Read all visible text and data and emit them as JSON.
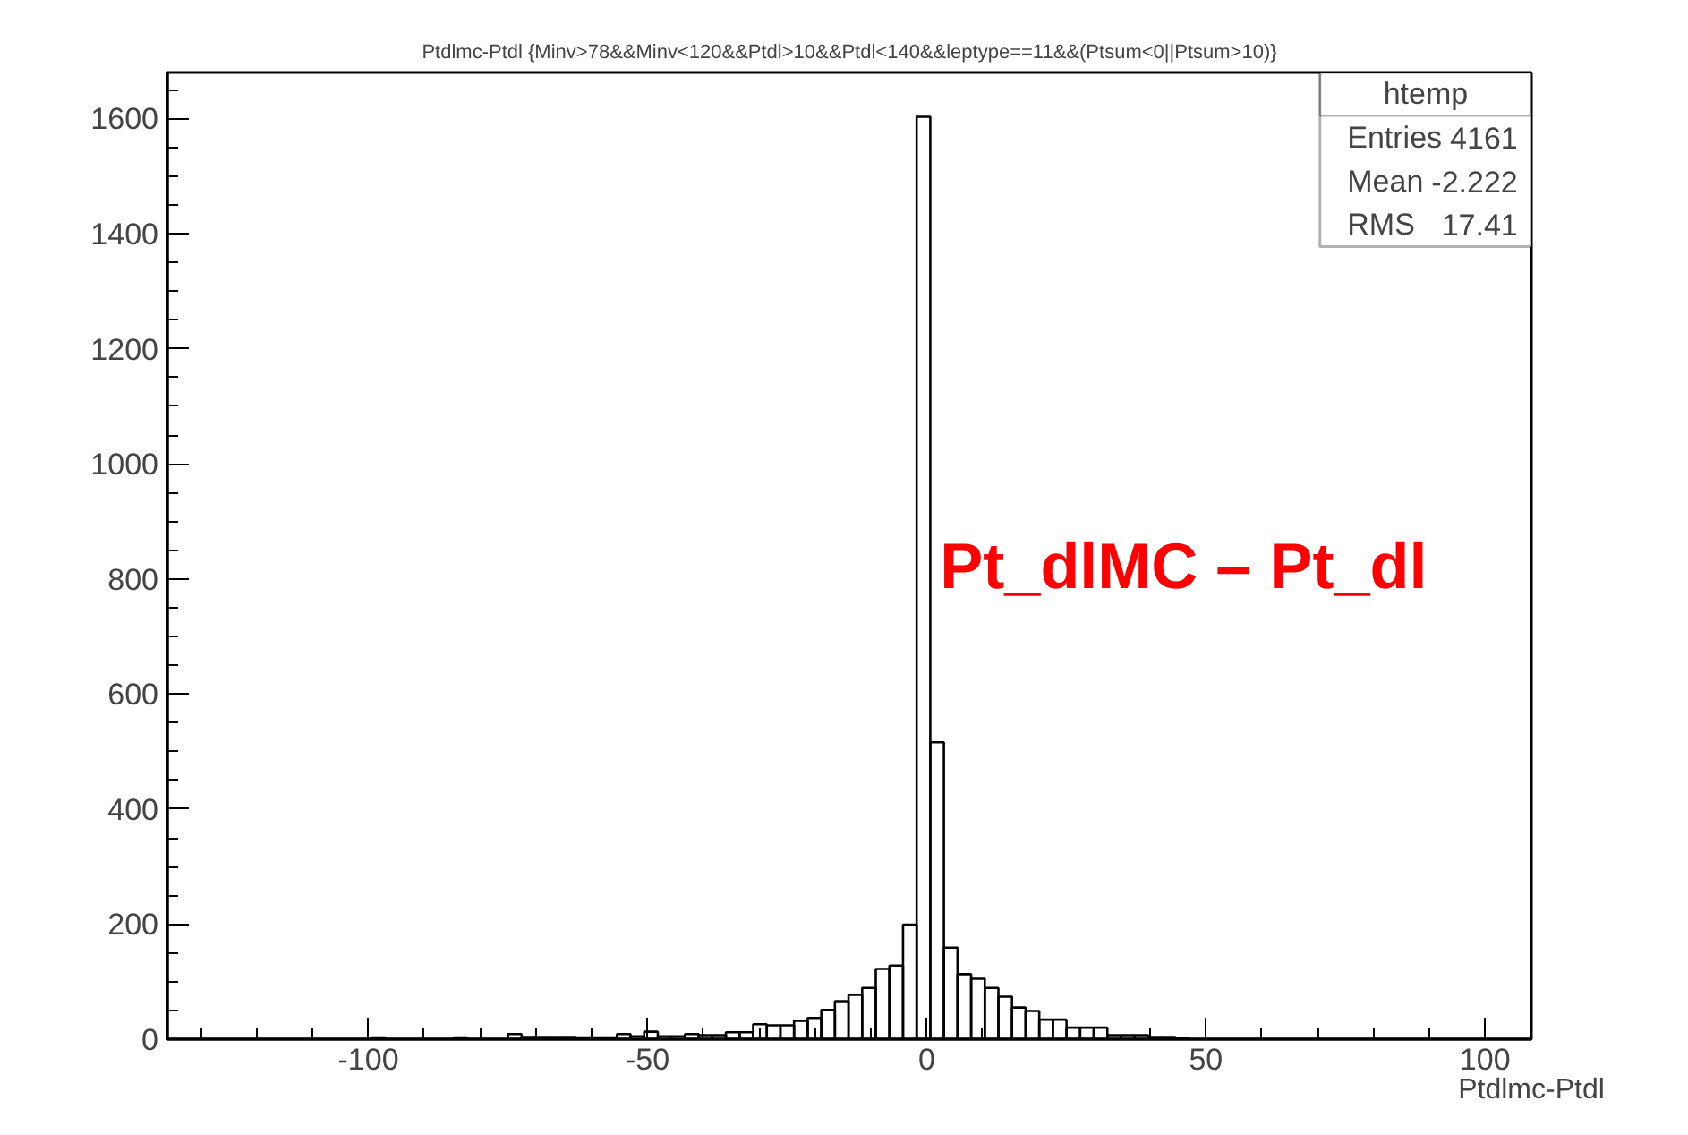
{
  "chart_data": {
    "type": "histogram",
    "title": "Ptdlmc-Ptdl {Minv>78&&Minv<120&&Ptdl>10&&Ptdl<140&&leptype==11&&(Ptsum<0||Ptsum>10)}",
    "xlabel": "Ptdlmc-Ptdl",
    "bins": [
      -136,
      -133.56,
      -131.12,
      -128.68,
      -126.24,
      -123.8,
      -121.36,
      -118.92,
      -116.48,
      -114.04,
      -111.6,
      -109.16,
      -106.72,
      -104.28,
      -101.84,
      -99.4,
      -96.96,
      -94.52,
      -92.08,
      -89.64,
      -87.2,
      -84.76,
      -82.32,
      -79.88,
      -77.44,
      -75,
      -72.56,
      -70.12,
      -67.68,
      -65.24,
      -62.8,
      -60.36,
      -57.92,
      -55.48,
      -53.04,
      -50.6,
      -48.16,
      -45.72,
      -43.28,
      -40.84,
      -38.4,
      -35.96,
      -33.52,
      -31.08,
      -28.64,
      -26.2,
      -23.76,
      -21.32,
      -18.88,
      -16.44,
      -14,
      -11.56,
      -9.12,
      -6.68,
      -4.24,
      -1.8,
      0.64,
      3.08,
      5.52,
      7.96,
      10.4,
      12.84,
      15.28,
      17.72,
      20.16,
      22.6,
      25.04,
      27.48,
      29.92,
      32.36,
      34.8,
      37.24,
      39.68,
      42.12,
      44.56,
      47,
      49.44,
      51.88,
      54.32,
      56.76,
      59.2,
      61.64,
      64.08,
      66.52,
      68.96,
      71.4,
      73.84,
      76.28,
      78.72,
      81.16,
      83.6,
      86.04,
      88.48,
      90.92,
      93.36,
      95.8,
      98.24,
      100.68,
      103.12,
      105.56,
      108
    ],
    "values": [
      0,
      0,
      0,
      0,
      0,
      0,
      0,
      0,
      0,
      0,
      0,
      0,
      0,
      0,
      0,
      3,
      0,
      0,
      0,
      0,
      0,
      3,
      0,
      0,
      0,
      9,
      4,
      4,
      4,
      4,
      3,
      3,
      3,
      9,
      5,
      13,
      5,
      5,
      9,
      7,
      7,
      12,
      12,
      26,
      24,
      24,
      32,
      37,
      51,
      66,
      77,
      89,
      122,
      128,
      199,
      1603,
      516,
      159,
      113,
      105,
      89,
      74,
      55,
      49,
      34,
      34,
      20,
      20,
      20,
      7,
      7,
      7,
      4,
      4,
      1,
      0,
      0,
      0,
      0,
      0,
      0,
      0,
      0,
      0,
      0,
      0,
      0,
      0,
      0,
      0,
      0,
      0,
      0,
      0,
      0,
      0,
      0,
      0,
      0,
      0
    ],
    "color": "#000000",
    "xlim": [
      -136,
      108.3
    ],
    "ylim": [
      0,
      1680
    ],
    "xticks": [
      -100,
      -50,
      0,
      50,
      100
    ],
    "yticks": [
      0,
      200,
      400,
      600,
      800,
      1000,
      1200,
      1400,
      1600
    ],
    "annotations": [
      "htemp",
      "Entries 4161",
      "Mean -2.222",
      "RMS 17.41",
      "Pt_dlMC – Pt_dl"
    ]
  }
}
